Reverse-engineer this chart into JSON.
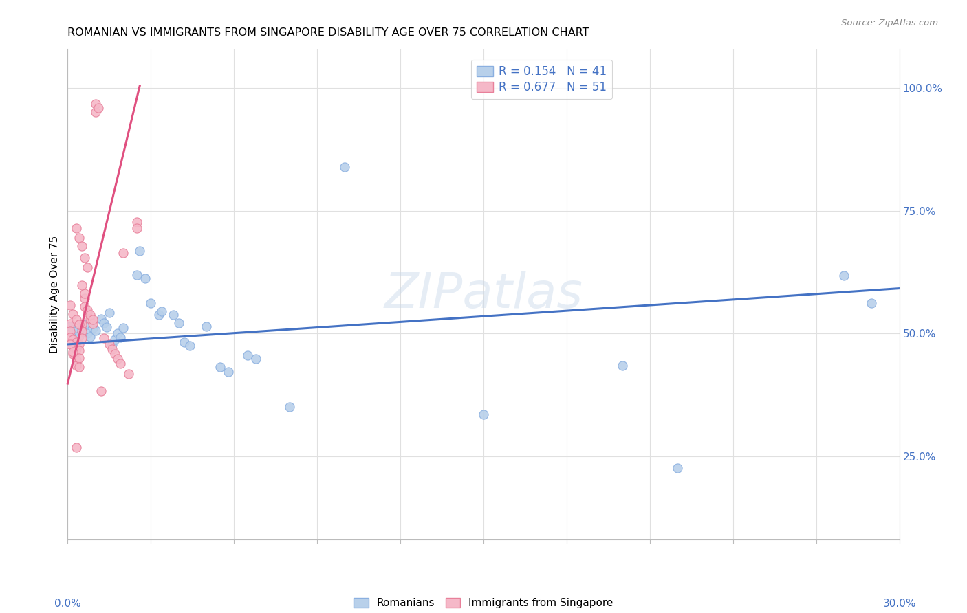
{
  "title": "ROMANIAN VS IMMIGRANTS FROM SINGAPORE DISABILITY AGE OVER 75 CORRELATION CHART",
  "source": "Source: ZipAtlas.com",
  "ylabel": "Disability Age Over 75",
  "ylabel_right_labels": [
    "100.0%",
    "75.0%",
    "50.0%",
    "25.0%"
  ],
  "ylabel_right_values": [
    1.0,
    0.75,
    0.5,
    0.25
  ],
  "xmin": 0.0,
  "xmax": 0.3,
  "ymin": 0.08,
  "ymax": 1.08,
  "legend1_label": "R = 0.154   N = 41",
  "legend2_label": "R = 0.677   N = 51",
  "watermark": "ZIPatlas",
  "blue_scatter": [
    [
      0.001,
      0.515
    ],
    [
      0.002,
      0.508
    ],
    [
      0.003,
      0.505
    ],
    [
      0.004,
      0.495
    ],
    [
      0.005,
      0.51
    ],
    [
      0.006,
      0.518
    ],
    [
      0.007,
      0.5
    ],
    [
      0.008,
      0.493
    ],
    [
      0.009,
      0.512
    ],
    [
      0.01,
      0.506
    ],
    [
      0.012,
      0.53
    ],
    [
      0.013,
      0.522
    ],
    [
      0.014,
      0.513
    ],
    [
      0.015,
      0.542
    ],
    [
      0.016,
      0.478
    ],
    [
      0.017,
      0.488
    ],
    [
      0.018,
      0.5
    ],
    [
      0.019,
      0.492
    ],
    [
      0.02,
      0.512
    ],
    [
      0.025,
      0.62
    ],
    [
      0.026,
      0.668
    ],
    [
      0.028,
      0.612
    ],
    [
      0.03,
      0.562
    ],
    [
      0.033,
      0.538
    ],
    [
      0.034,
      0.545
    ],
    [
      0.038,
      0.538
    ],
    [
      0.04,
      0.522
    ],
    [
      0.042,
      0.482
    ],
    [
      0.044,
      0.475
    ],
    [
      0.05,
      0.515
    ],
    [
      0.055,
      0.432
    ],
    [
      0.058,
      0.422
    ],
    [
      0.065,
      0.455
    ],
    [
      0.068,
      0.448
    ],
    [
      0.08,
      0.35
    ],
    [
      0.1,
      0.84
    ],
    [
      0.15,
      0.335
    ],
    [
      0.2,
      0.435
    ],
    [
      0.22,
      0.225
    ],
    [
      0.28,
      0.618
    ],
    [
      0.29,
      0.562
    ]
  ],
  "pink_scatter": [
    [
      0.001,
      0.52
    ],
    [
      0.001,
      0.505
    ],
    [
      0.001,
      0.492
    ],
    [
      0.002,
      0.488
    ],
    [
      0.002,
      0.472
    ],
    [
      0.002,
      0.458
    ],
    [
      0.003,
      0.482
    ],
    [
      0.003,
      0.468
    ],
    [
      0.003,
      0.445
    ],
    [
      0.003,
      0.435
    ],
    [
      0.004,
      0.478
    ],
    [
      0.004,
      0.465
    ],
    [
      0.004,
      0.45
    ],
    [
      0.004,
      0.432
    ],
    [
      0.005,
      0.518
    ],
    [
      0.005,
      0.505
    ],
    [
      0.005,
      0.49
    ],
    [
      0.006,
      0.572
    ],
    [
      0.006,
      0.555
    ],
    [
      0.007,
      0.542
    ],
    [
      0.008,
      0.53
    ],
    [
      0.009,
      0.52
    ],
    [
      0.01,
      0.952
    ],
    [
      0.01,
      0.968
    ],
    [
      0.011,
      0.96
    ],
    [
      0.012,
      0.382
    ],
    [
      0.013,
      0.49
    ],
    [
      0.015,
      0.478
    ],
    [
      0.02,
      0.665
    ],
    [
      0.025,
      0.728
    ],
    [
      0.025,
      0.715
    ],
    [
      0.001,
      0.558
    ],
    [
      0.002,
      0.54
    ],
    [
      0.003,
      0.528
    ],
    [
      0.004,
      0.518
    ],
    [
      0.001,
      0.478
    ],
    [
      0.002,
      0.462
    ],
    [
      0.006,
      0.582
    ],
    [
      0.005,
      0.598
    ],
    [
      0.007,
      0.548
    ],
    [
      0.008,
      0.538
    ],
    [
      0.009,
      0.528
    ],
    [
      0.003,
      0.268
    ],
    [
      0.016,
      0.468
    ],
    [
      0.017,
      0.458
    ],
    [
      0.018,
      0.448
    ],
    [
      0.019,
      0.438
    ],
    [
      0.022,
      0.418
    ],
    [
      0.003,
      0.715
    ],
    [
      0.004,
      0.695
    ],
    [
      0.005,
      0.678
    ],
    [
      0.006,
      0.655
    ],
    [
      0.007,
      0.635
    ]
  ],
  "blue_line_x": [
    0.0,
    0.3
  ],
  "blue_line_y": [
    0.478,
    0.592
  ],
  "pink_line_x": [
    0.0,
    0.026
  ],
  "pink_line_y": [
    0.398,
    1.005
  ],
  "blue_line_color": "#4472c4",
  "pink_line_color": "#e05080",
  "scatter_blue_color": "#b8d0ea",
  "scatter_blue_edge": "#8aafe0",
  "scatter_pink_color": "#f5b8c8",
  "scatter_pink_edge": "#e8809a",
  "grid_color": "#e0e0e0",
  "title_fontsize": 11.5,
  "source_fontsize": 9.5,
  "ax_label_color": "#4472c4"
}
